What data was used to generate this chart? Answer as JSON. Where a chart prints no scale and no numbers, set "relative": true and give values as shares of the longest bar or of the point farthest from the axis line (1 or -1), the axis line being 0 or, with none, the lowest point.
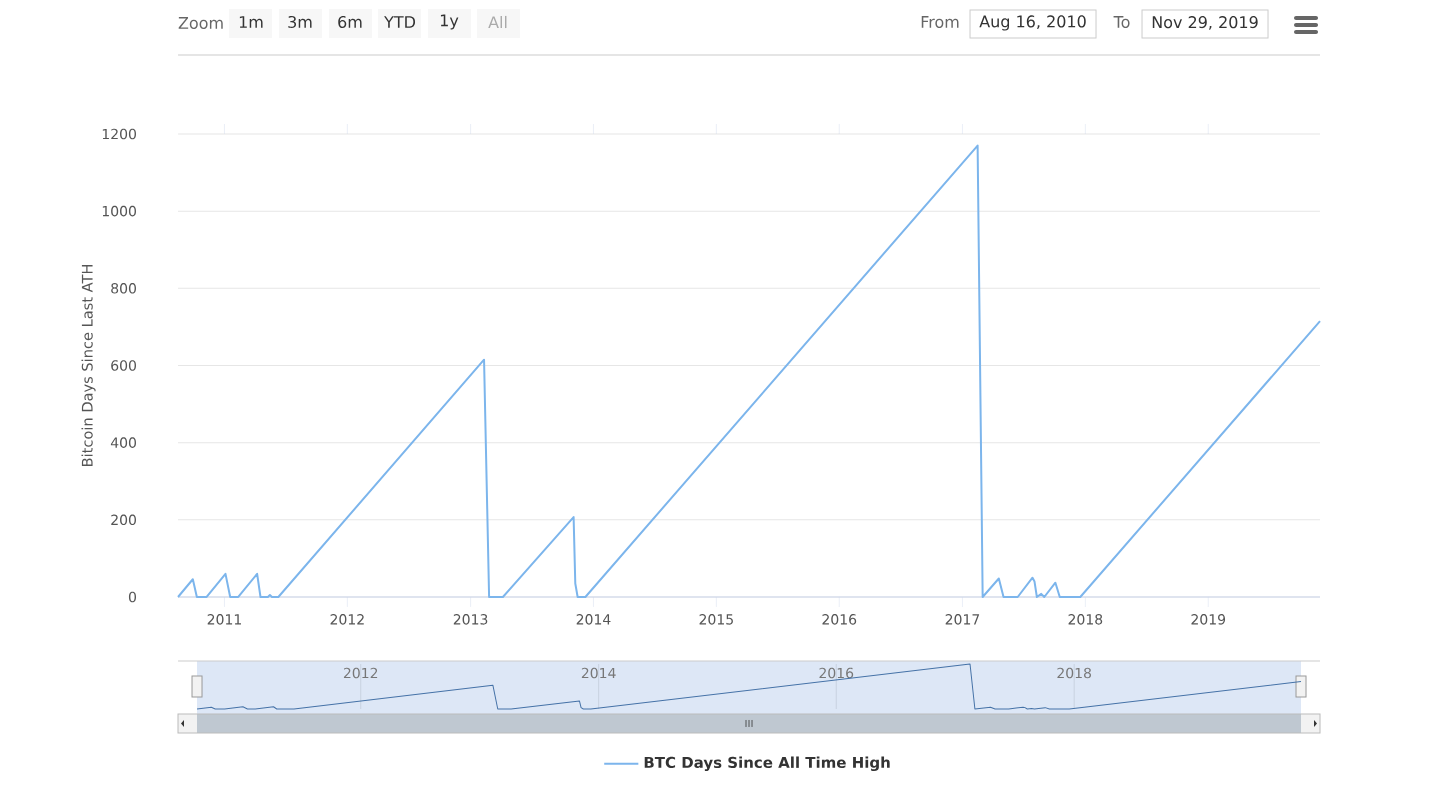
{
  "chart_data": [
    {
      "type": "line",
      "ylabel": "Bitcoin Days Since Last ATH",
      "x": [
        "2010-08-16",
        "2010-09-29",
        "2010-10-11",
        "2010-11-09",
        "2011-01-04",
        "2011-01-18",
        "2011-02-11",
        "2011-04-08",
        "2011-04-18",
        "2011-05-10",
        "2011-05-16",
        "2011-05-22",
        "2011-06-10",
        "2013-02-10",
        "2013-02-25",
        "2013-04-07",
        "2013-11-03",
        "2013-11-08",
        "2013-11-15",
        "2013-12-08",
        "2017-02-15",
        "2017-03-02",
        "2017-04-19",
        "2017-05-03",
        "2017-06-14",
        "2017-07-28",
        "2017-08-03",
        "2017-08-10",
        "2017-08-23",
        "2017-09-01",
        "2017-10-04",
        "2017-10-17",
        "2017-12-17",
        "2019-11-29"
      ],
      "series": [
        {
          "name": "BTC Days Since All Time High",
          "color": "#7cb5ec",
          "values": [
            0,
            46,
            0,
            0,
            60,
            0,
            0,
            60,
            0,
            0,
            5,
            0,
            0,
            615,
            0,
            0,
            207,
            35,
            0,
            0,
            1170,
            0,
            48,
            0,
            0,
            50,
            40,
            0,
            8,
            0,
            37,
            0,
            0,
            715
          ]
        }
      ],
      "xlim": [
        "2010-08-16",
        "2019-11-29"
      ],
      "xticks": [
        "2011",
        "2012",
        "2013",
        "2014",
        "2015",
        "2016",
        "2017",
        "2018",
        "2019"
      ],
      "ylim": [
        0,
        1200
      ],
      "yticks": [
        0,
        200,
        400,
        600,
        800,
        1000,
        1200
      ],
      "grid": "y",
      "legend": "bottom",
      "marker": "none",
      "line_style": "solid",
      "annotations": [
        "Zoom",
        "1m",
        "3m",
        "6m",
        "YTD",
        "1y",
        "All",
        "From",
        "Aug 16, 2010",
        "To",
        "Nov 29, 2019"
      ]
    },
    {
      "type": "line",
      "x": [
        "2010-08-16",
        "2010-09-29",
        "2010-10-11",
        "2010-11-09",
        "2011-01-04",
        "2011-01-18",
        "2011-02-11",
        "2011-04-08",
        "2011-04-18",
        "2011-05-10",
        "2011-05-16",
        "2011-05-22",
        "2011-06-10",
        "2013-02-10",
        "2013-02-25",
        "2013-04-07",
        "2013-11-03",
        "2013-11-08",
        "2013-11-15",
        "2013-12-08",
        "2017-02-15",
        "2017-03-02",
        "2017-04-19",
        "2017-05-03",
        "2017-06-14",
        "2017-07-28",
        "2017-08-03",
        "2017-08-10",
        "2017-08-23",
        "2017-09-01",
        "2017-10-04",
        "2017-10-17",
        "2017-12-17",
        "2019-11-29"
      ],
      "series": [
        {
          "color": "#4572a7",
          "values": [
            0,
            0.04,
            0,
            0,
            0.05,
            0,
            0,
            0.05,
            0,
            0,
            0,
            0,
            0,
            0.53,
            0,
            0,
            0.18,
            0.03,
            0,
            0,
            1,
            0,
            0.04,
            0,
            0,
            0.04,
            0.03,
            0,
            0.01,
            0,
            0.03,
            0,
            0,
            0.61
          ]
        }
      ],
      "xlim": [
        "2010-08-16",
        "2019-11-29"
      ],
      "xticks": [
        "2012",
        "2014",
        "2016",
        "2018"
      ],
      "relative": true,
      "tick_labels": "x",
      "grid": "x",
      "marker": "none",
      "line_style": "solid"
    }
  ]
}
